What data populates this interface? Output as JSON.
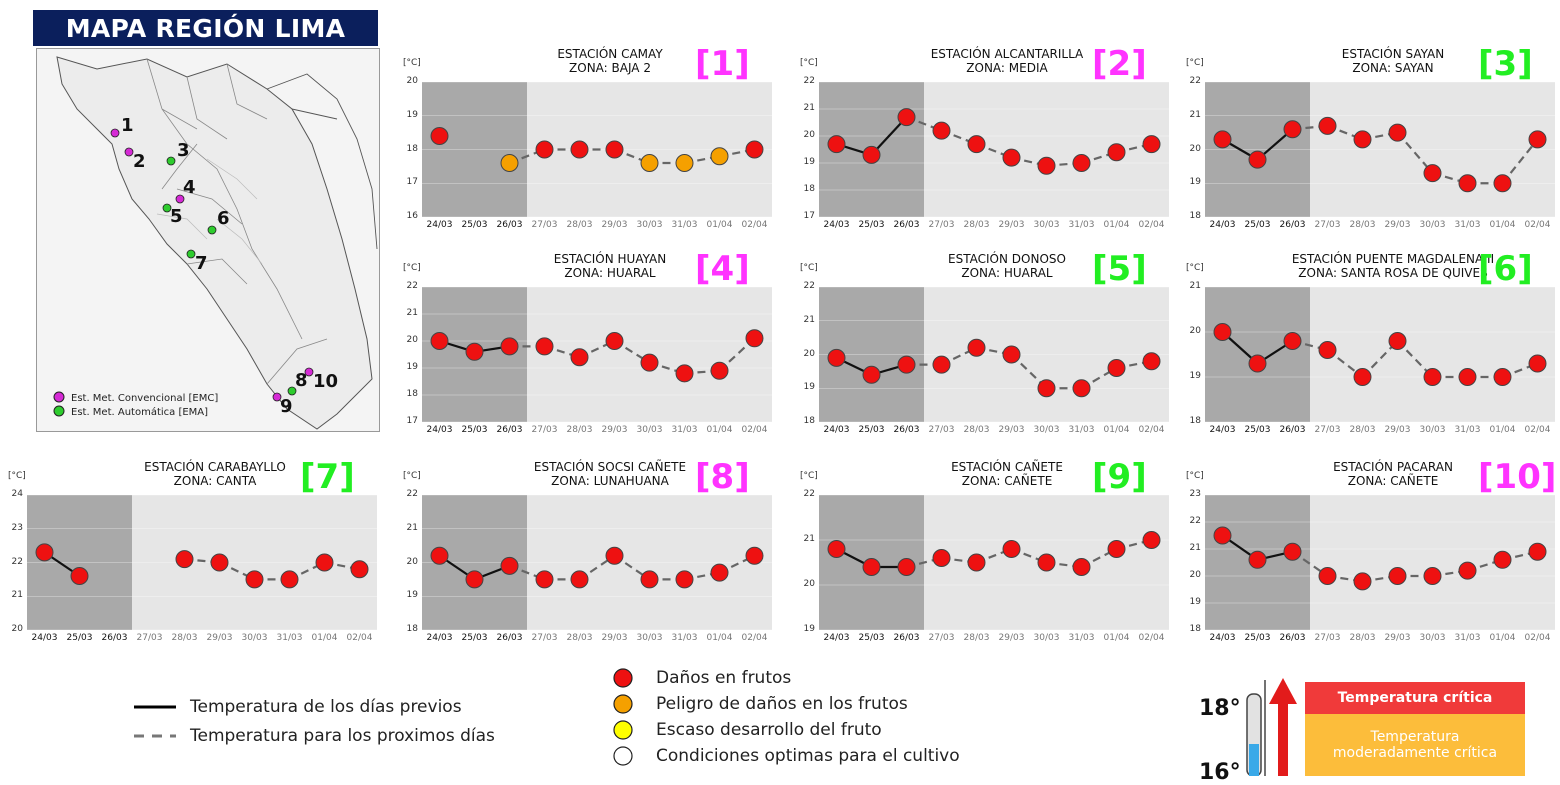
{
  "map": {
    "title": "MAPA REGIÓN LIMA",
    "legend": [
      {
        "label": "Est. Met. Convencional [EMC]",
        "color": "#d52ad5"
      },
      {
        "label": "Est. Met. Automática [EMA]",
        "color": "#2ecc2e"
      }
    ],
    "stations": [
      {
        "num": "1",
        "type": "EMC"
      },
      {
        "num": "2",
        "type": "EMC"
      },
      {
        "num": "3",
        "type": "EMA"
      },
      {
        "num": "4",
        "type": "EMC"
      },
      {
        "num": "5",
        "type": "EMA"
      },
      {
        "num": "6",
        "type": "EMA"
      },
      {
        "num": "7",
        "type": "EMA"
      },
      {
        "num": "8",
        "type": "EMC"
      },
      {
        "num": "9",
        "type": "EMA"
      },
      {
        "num": "10",
        "type": "EMC"
      }
    ]
  },
  "colors": {
    "damage": "#ee1111",
    "risk": "#f5a000",
    "low": "#ffff00",
    "optimal": "#ffffff",
    "emc_label": "#ff33ff",
    "ema_label": "#22ee22"
  },
  "dates": [
    "24/03",
    "25/03",
    "26/03",
    "27/03",
    "28/03",
    "29/03",
    "30/03",
    "31/03",
    "01/04",
    "02/04"
  ],
  "unit_label": "[°C]",
  "chart_data": [
    {
      "type": "line",
      "title": "ESTACIÓN CAMAY",
      "zone": "ZONA: BAJA 2",
      "number": "[1]",
      "station_type": "EMC",
      "ylim": [
        16,
        20
      ],
      "yticks": [
        "16",
        "17",
        "18",
        "19",
        "20"
      ],
      "values": [
        18.4,
        null,
        17.6,
        18.0,
        18.0,
        18.0,
        17.6,
        17.6,
        17.8,
        18.0
      ],
      "states": [
        "damage",
        "damage",
        "risk",
        "damage",
        "damage",
        "damage",
        "risk",
        "risk",
        "risk",
        "damage"
      ]
    },
    {
      "type": "line",
      "title": "ESTACIÓN ALCANTARILLA",
      "zone": "ZONA: MEDIA",
      "number": "[2]",
      "station_type": "EMC",
      "ylim": [
        17,
        22
      ],
      "yticks": [
        "17",
        "18",
        "19",
        "20",
        "21",
        "22"
      ],
      "values": [
        19.7,
        19.3,
        20.7,
        20.2,
        19.7,
        19.2,
        18.9,
        19.0,
        19.4,
        19.7
      ],
      "states": [
        "damage",
        "damage",
        "damage",
        "damage",
        "damage",
        "damage",
        "damage",
        "damage",
        "damage",
        "damage"
      ]
    },
    {
      "type": "line",
      "title": "ESTACIÓN SAYAN",
      "zone": "ZONA: SAYAN",
      "number": "[3]",
      "station_type": "EMA",
      "ylim": [
        18,
        22
      ],
      "yticks": [
        "18",
        "19",
        "20",
        "21",
        "22"
      ],
      "values": [
        20.3,
        19.7,
        20.6,
        20.7,
        20.3,
        20.5,
        19.3,
        19.0,
        19.0,
        20.3
      ],
      "states": [
        "damage",
        "damage",
        "damage",
        "damage",
        "damage",
        "damage",
        "damage",
        "damage",
        "damage",
        "damage"
      ]
    },
    {
      "type": "line",
      "title": "ESTACIÓN HUAYAN",
      "zone": "ZONA: HUARAL",
      "number": "[4]",
      "station_type": "EMC",
      "ylim": [
        17,
        22
      ],
      "yticks": [
        "17",
        "18",
        "19",
        "20",
        "21",
        "22"
      ],
      "values": [
        20.0,
        19.6,
        19.8,
        19.8,
        19.4,
        20.0,
        19.2,
        18.8,
        18.9,
        20.1
      ],
      "states": [
        "damage",
        "damage",
        "damage",
        "damage",
        "damage",
        "damage",
        "damage",
        "damage",
        "damage",
        "damage"
      ]
    },
    {
      "type": "line",
      "title": "ESTACIÓN DONOSO",
      "zone": "ZONA: HUARAL",
      "number": "[5]",
      "station_type": "EMA",
      "ylim": [
        18,
        22
      ],
      "yticks": [
        "18",
        "19",
        "20",
        "21",
        "22"
      ],
      "values": [
        19.9,
        19.4,
        19.7,
        19.7,
        20.2,
        20.0,
        19.0,
        19.0,
        19.6,
        19.8
      ],
      "states": [
        "damage",
        "damage",
        "damage",
        "damage",
        "damage",
        "damage",
        "damage",
        "damage",
        "damage",
        "damage"
      ]
    },
    {
      "type": "line",
      "title": "ESTACIÓN PUENTE MAGDALENA II",
      "zone": "ZONA: SANTA ROSA DE QUIVES",
      "number": "[6]",
      "station_type": "EMA",
      "ylim": [
        18,
        21
      ],
      "yticks": [
        "18",
        "19",
        "20",
        "21"
      ],
      "values": [
        20.0,
        19.3,
        19.8,
        19.6,
        19.0,
        19.8,
        19.0,
        19.0,
        19.0,
        19.3
      ],
      "states": [
        "damage",
        "damage",
        "damage",
        "damage",
        "damage",
        "damage",
        "damage",
        "damage",
        "damage",
        "damage"
      ]
    },
    {
      "type": "line",
      "title": "ESTACIÓN CARABAYLLO",
      "zone": "ZONA: CANTA",
      "number": "[7]",
      "station_type": "EMA",
      "ylim": [
        20,
        24
      ],
      "yticks": [
        "20",
        "21",
        "22",
        "23",
        "24"
      ],
      "values": [
        22.3,
        21.6,
        null,
        null,
        22.1,
        22.0,
        21.5,
        21.5,
        22.0,
        21.8
      ],
      "states": [
        "damage",
        "damage",
        "damage",
        "damage",
        "damage",
        "damage",
        "damage",
        "damage",
        "damage",
        "damage"
      ]
    },
    {
      "type": "line",
      "title": "ESTACIÓN SOCSI CAÑETE",
      "zone": "ZONA: LUNAHUANA",
      "number": "[8]",
      "station_type": "EMC",
      "ylim": [
        18,
        22
      ],
      "yticks": [
        "18",
        "19",
        "20",
        "21",
        "22"
      ],
      "values": [
        20.2,
        19.5,
        19.9,
        19.5,
        19.5,
        20.2,
        19.5,
        19.5,
        19.7,
        20.2
      ],
      "states": [
        "damage",
        "damage",
        "damage",
        "damage",
        "damage",
        "damage",
        "damage",
        "damage",
        "damage",
        "damage"
      ]
    },
    {
      "type": "line",
      "title": "ESTACIÓN CAÑETE",
      "zone": "ZONA: CAÑETE",
      "number": "[9]",
      "station_type": "EMA",
      "ylim": [
        19,
        22
      ],
      "yticks": [
        "19",
        "20",
        "21",
        "22"
      ],
      "values": [
        20.8,
        20.4,
        20.4,
        20.6,
        20.5,
        20.8,
        20.5,
        20.4,
        20.8,
        21.0
      ],
      "states": [
        "damage",
        "damage",
        "damage",
        "damage",
        "damage",
        "damage",
        "damage",
        "damage",
        "damage",
        "damage"
      ]
    },
    {
      "type": "line",
      "title": "ESTACIÓN PACARAN",
      "zone": "ZONA: CAÑETE",
      "number": "[10]",
      "station_type": "EMC",
      "ylim": [
        18,
        23
      ],
      "yticks": [
        "18",
        "19",
        "20",
        "21",
        "22",
        "23"
      ],
      "values": [
        21.5,
        20.6,
        20.9,
        20.0,
        19.8,
        20.0,
        20.0,
        20.2,
        20.6,
        20.9
      ],
      "states": [
        "damage",
        "damage",
        "damage",
        "damage",
        "damage",
        "damage",
        "damage",
        "damage",
        "damage",
        "damage"
      ]
    }
  ],
  "legend": {
    "lines": [
      {
        "label": "Temperatura de los días previos",
        "style": "solid"
      },
      {
        "label": "Temperatura para los proximos días",
        "style": "dashed"
      }
    ],
    "markers": [
      {
        "label": "Daños en frutos",
        "state": "damage"
      },
      {
        "label": "Peligro de daños en los frutos",
        "state": "risk"
      },
      {
        "label": "Escaso desarrollo del fruto",
        "state": "low"
      },
      {
        "label": "Condiciones optimas para el cultivo",
        "state": "optimal"
      }
    ]
  },
  "scale": {
    "critical_label": "Temperatura crítica",
    "moderate_label": "Temperatura moderadamente crítica",
    "tick_18": "18°",
    "tick_16": "16°"
  }
}
